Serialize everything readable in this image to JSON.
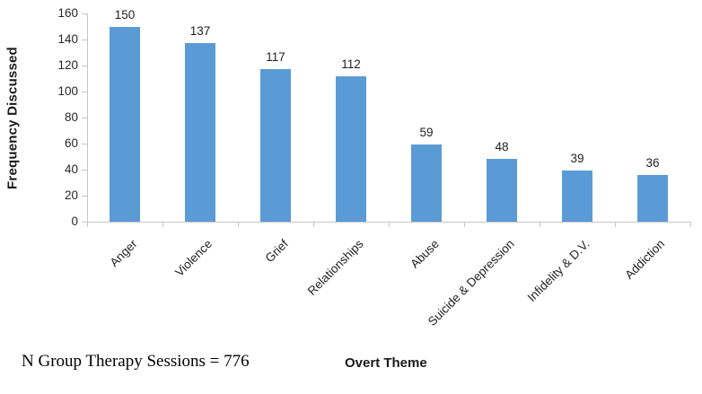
{
  "chart_data": {
    "type": "bar",
    "categories": [
      "Anger",
      "Violence",
      "Grief",
      "Relationships",
      "Abuse",
      "Suicide & Depression",
      "Infidelity & D.V.",
      "Addiction"
    ],
    "values": [
      150,
      137,
      117,
      112,
      59,
      48,
      39,
      36
    ],
    "title": "",
    "xlabel": "Overt Theme",
    "ylabel": "Frequency Discussed",
    "ylim": [
      0,
      160
    ],
    "ytick_step": 20,
    "grid": false,
    "legend": "none",
    "bar_color": "#5b9bd5",
    "axis_color": "#c6c6c6",
    "data_labels": true
  },
  "footnote": "N Group Therapy Sessions = 776"
}
